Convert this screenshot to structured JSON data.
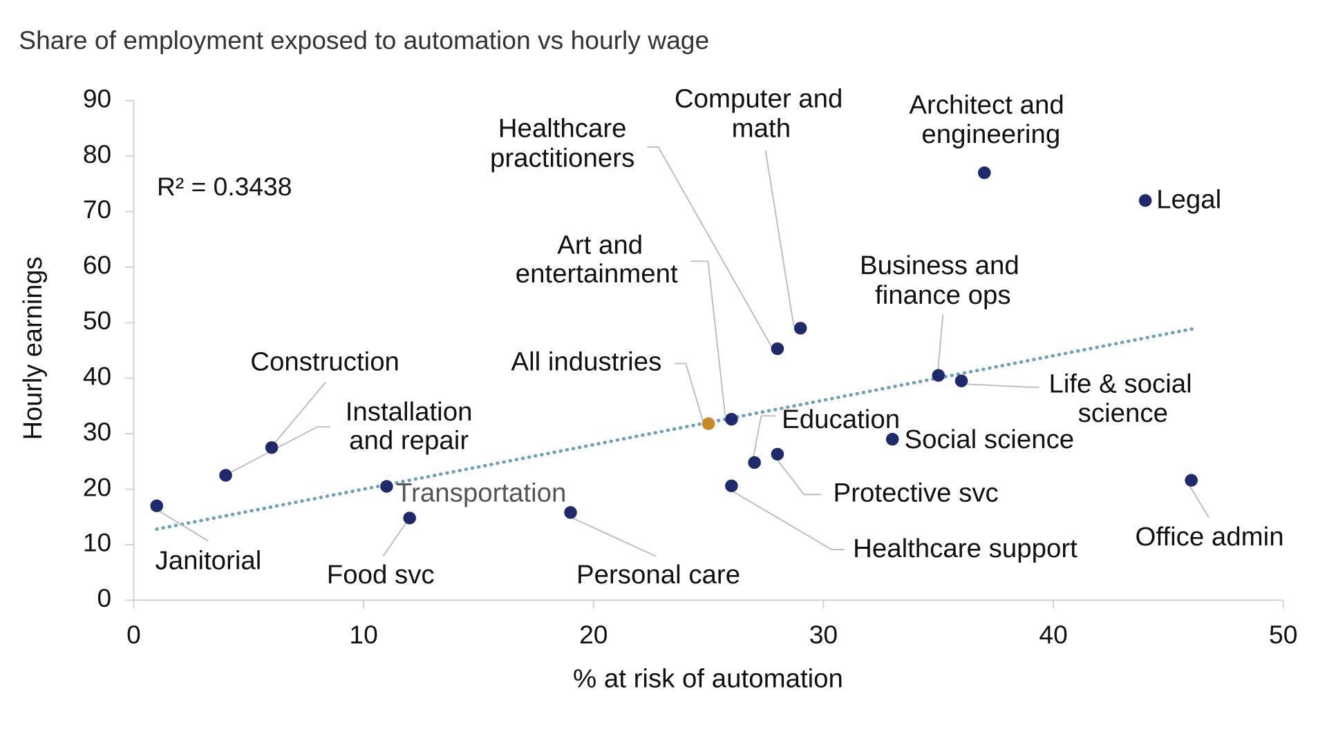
{
  "chart_data": {
    "type": "scatter",
    "title": "Share of employment exposed to automation vs hourly wage",
    "x_label": "% at risk of automation",
    "y_label": "Hourly earnings",
    "annotation": "R² = 0.3438",
    "xlim": [
      0,
      50
    ],
    "ylim": [
      0,
      90
    ],
    "xticks": [
      0,
      10,
      20,
      30,
      40,
      50
    ],
    "yticks": [
      0,
      10,
      20,
      30,
      40,
      50,
      60,
      70,
      80,
      90
    ],
    "x": [
      1,
      6,
      4,
      11,
      12,
      19,
      25,
      26,
      26,
      27,
      28,
      28,
      29,
      33,
      35,
      36,
      37,
      44,
      46
    ],
    "y": [
      17,
      27.5,
      22.5,
      20.5,
      14.8,
      15.8,
      31.8,
      32.6,
      20.6,
      24.8,
      26.3,
      45.3,
      49,
      29,
      40.5,
      39.5,
      77,
      72,
      21.6
    ],
    "labels": [
      [
        "Janitorial"
      ],
      [
        "Construction"
      ],
      [
        "Installation",
        "and repair"
      ],
      [
        "Transportation"
      ],
      [
        "Food svc"
      ],
      [
        "Personal care"
      ],
      [
        "All industries"
      ],
      [
        "Art and",
        "entertainment"
      ],
      [
        "Healthcare support"
      ],
      [
        "Education"
      ],
      [
        "Protective svc"
      ],
      [
        "Healthcare",
        "practitioners"
      ],
      [
        "Computer and",
        "math"
      ],
      [
        "Social science"
      ],
      [
        "Business and",
        "finance ops"
      ],
      [
        "Life & social",
        "science"
      ],
      [
        "Architect and",
        "engineering"
      ],
      [
        "Legal"
      ],
      [
        "Office admin"
      ]
    ],
    "colors": [
      "#1f2a6b",
      "#1f2a6b",
      "#1f2a6b",
      "#1f2a6b",
      "#1f2a6b",
      "#1f2a6b",
      "#c8892b",
      "#1f2a6b",
      "#1f2a6b",
      "#1f2a6b",
      "#1f2a6b",
      "#1f2a6b",
      "#1f2a6b",
      "#1f2a6b",
      "#1f2a6b",
      "#1f2a6b",
      "#1f2a6b",
      "#1f2a6b",
      "#1f2a6b"
    ],
    "trendline": {
      "x": [
        1,
        46.2
      ],
      "y": [
        12.8,
        49
      ],
      "color": "#6fa0b5"
    }
  }
}
